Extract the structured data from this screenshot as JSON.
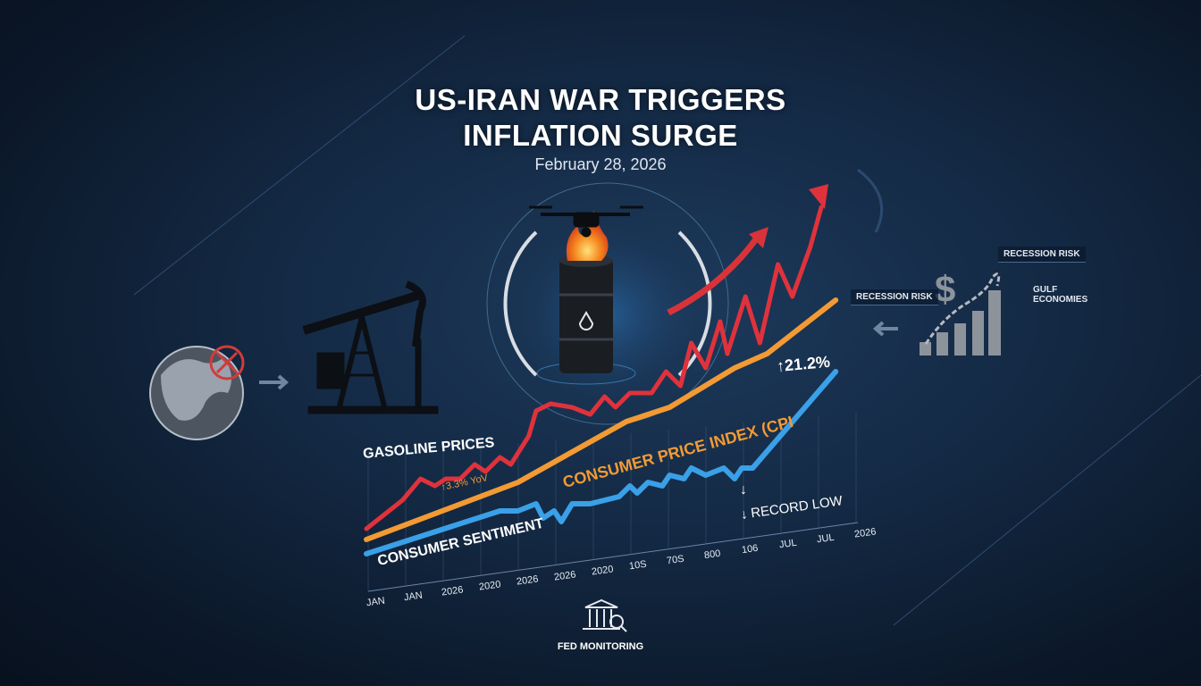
{
  "title_line1": "US-IRAN WAR TRIGGERS",
  "title_line2": "INFLATION SURGE",
  "date": "February 28, 2026",
  "right_panel": {
    "tag_top": "RECESSION RISK",
    "tag_left": "RECESSION RISK",
    "tag_gulf": "GULF ECONOMIES"
  },
  "fed_label": "FED MONITORING",
  "colors": {
    "gasoline": "#e0323c",
    "cpi": "#f39a34",
    "sentiment": "#3aa0e8",
    "background": "#122640"
  },
  "icons": [
    "globe-icon",
    "blocked-icon",
    "oil-pump-jack-icon",
    "drone-icon",
    "fire-icon",
    "oil-barrel-icon",
    "dollar-chain-chart-icon",
    "fed-building-icon"
  ],
  "chart_data": {
    "type": "line",
    "x_ticks": [
      "JAN",
      "JAN",
      "2026",
      "2020",
      "2026",
      "2026",
      "2020",
      "10S",
      "70S",
      "800",
      "106",
      "JUL",
      "JUL",
      "2026"
    ],
    "grid": true,
    "annotations": {
      "yoy": "↑3.3% YoV",
      "peak": "↑21.2%",
      "record_low_arrow": "↓",
      "record_low": "↓ RECORD LOW"
    },
    "series": [
      {
        "name": "GASOLINE PRICES",
        "x": [
          0,
          1,
          1.5,
          1.9,
          2.2,
          2.6,
          3,
          3.3,
          3.7,
          4,
          4.5,
          4.7,
          5.1,
          5.7,
          6.2,
          6.6,
          6.9,
          7.3,
          7.9,
          8.3,
          8.7,
          9,
          9.4,
          9.8,
          10,
          10.5,
          10.9,
          11.4,
          11.8,
          12.3,
          12.6
        ],
        "y": [
          12,
          20,
          26,
          24,
          26,
          26,
          30,
          28,
          32,
          30,
          38,
          45,
          47,
          46,
          44,
          49,
          46,
          50,
          50,
          56,
          52,
          64,
          57,
          70,
          61,
          77,
          64,
          86,
          77,
          91,
          102
        ]
      },
      {
        "name": "CONSUMER PRICE INDEX (CPI",
        "x": [
          0,
          4.2,
          7.2,
          8.4,
          10.2,
          11.1,
          13
        ],
        "y": [
          9,
          25,
          42,
          46,
          57,
          61,
          76
        ]
      },
      {
        "name": "CONSUMER SENTIMENT",
        "x": [
          0,
          3.7,
          4.2,
          4.7,
          4.9,
          5.2,
          5.4,
          5.7,
          6.2,
          7,
          7.3,
          7.5,
          7.8,
          8.2,
          8.4,
          8.8,
          9,
          9.4,
          9.9,
          10.2,
          10.4,
          10.7,
          13
        ],
        "y": [
          5,
          17,
          17,
          19,
          15,
          17,
          14,
          19,
          19,
          21,
          24,
          22,
          25,
          24,
          27,
          26,
          29,
          27,
          29,
          26,
          29,
          29,
          56
        ]
      }
    ]
  }
}
